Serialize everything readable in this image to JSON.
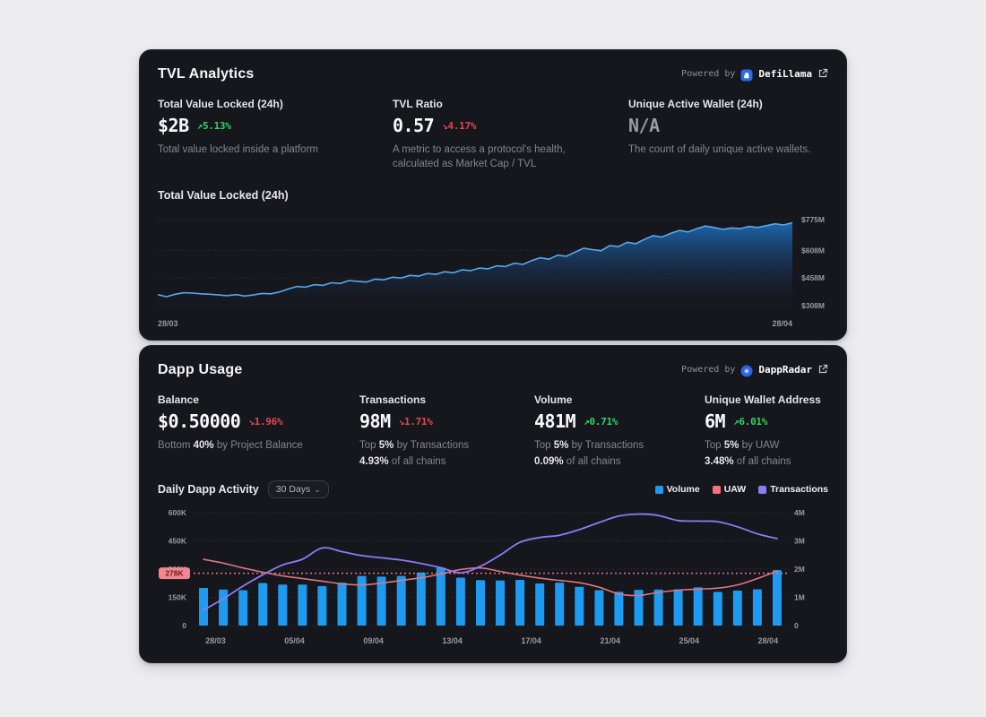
{
  "theme": {
    "card_bg": "#16161d",
    "page_bg": "#ededf0",
    "accent_blue": "#1d9bf0",
    "green": "#2fd565",
    "red": "#e5484d",
    "purple": "#8b7cf6",
    "pink": "#dd7680",
    "muted_text": "#85858e"
  },
  "tvl_card": {
    "title": "TVL Analytics",
    "powered_by": "Powered by",
    "provider": "DefiLlama",
    "metrics": [
      {
        "label": "Total Value Locked (24h)",
        "value": "$2B",
        "arrow": "↗",
        "change": "5.13%",
        "direction": "up",
        "description": "Total value locked inside a platform"
      },
      {
        "label": "TVL Ratio",
        "value": "0.57",
        "arrow": "↘",
        "change": "4.17%",
        "direction": "down",
        "description": "A metric to access a protocol's health, calculated as Market Cap / TVL"
      },
      {
        "label": "Unique Active Wallet (24h)",
        "value": "N/A",
        "description": "The count of daily unique active wallets."
      }
    ],
    "chart_title": "Total Value Locked (24h)"
  },
  "dapp_card": {
    "title": "Dapp Usage",
    "powered_by": "Powered by",
    "provider": "DappRadar",
    "metrics": [
      {
        "label": "Balance",
        "value": "$0.50000",
        "arrow": "↘",
        "change": "1.96%",
        "direction": "down",
        "desc_prefix": "Bottom ",
        "desc_highlight": "40%",
        "desc_suffix": " by Project Balance"
      },
      {
        "label": "Transactions",
        "value": "98M",
        "arrow": "↘",
        "change": "1.71%",
        "direction": "down",
        "desc_prefix": "Top ",
        "desc_highlight": "5%",
        "desc_suffix": " by Transactions",
        "line2_highlight": "4.93%",
        "line2_suffix": " of all chains"
      },
      {
        "label": "Volume",
        "value": "481M",
        "arrow": "↗",
        "change": "0.71%",
        "direction": "up",
        "desc_prefix": "Top ",
        "desc_highlight": "5%",
        "desc_suffix": " by Transactions",
        "line2_highlight": "0.09%",
        "line2_suffix": " of all chains"
      },
      {
        "label": "Unique Wallet Address",
        "value": "6M",
        "arrow": "↗",
        "change": "6.01%",
        "direction": "up",
        "desc_prefix": "Top ",
        "desc_highlight": "5%",
        "desc_suffix": " by UAW",
        "line2_highlight": "3.48%",
        "line2_suffix": " of all chains"
      }
    ],
    "chart_title": "Daily Dapp Activity",
    "range_selector": "30 Days"
  },
  "chart_data": [
    {
      "type": "area",
      "title": "Total Value Locked (24h)",
      "unit": "USD millions",
      "x_first_label": "28/03",
      "x_last_label": "28/04",
      "y_ticks": [
        {
          "label": "$775M",
          "value": 775
        },
        {
          "label": "$608M",
          "value": 608
        },
        {
          "label": "$458M",
          "value": 458
        },
        {
          "label": "$308M",
          "value": 308
        }
      ],
      "ylim": [
        308,
        775
      ],
      "line_color": "#57a9ea",
      "fill_color": "#1d74c8",
      "values": [
        368,
        356,
        370,
        378,
        376,
        372,
        370,
        366,
        362,
        368,
        360,
        366,
        374,
        372,
        382,
        398,
        412,
        408,
        422,
        418,
        432,
        428,
        444,
        440,
        436,
        452,
        448,
        462,
        458,
        472,
        468,
        482,
        478,
        492,
        486,
        502,
        498,
        512,
        508,
        524,
        520,
        538,
        532,
        552,
        568,
        560,
        582,
        576,
        598,
        620,
        612,
        606,
        634,
        628,
        652,
        644,
        668,
        688,
        680,
        700,
        716,
        708,
        726,
        740,
        732,
        722,
        730,
        726,
        738,
        732,
        742,
        752,
        746,
        758
      ]
    },
    {
      "type": "combo",
      "title": "Daily Dapp Activity",
      "x_labels": [
        "28/03",
        "05/04",
        "09/04",
        "13/04",
        "17/04",
        "21/04",
        "25/04",
        "28/04"
      ],
      "left_axis": {
        "unit": "K",
        "max": 600,
        "ticks": [
          {
            "label": "600K",
            "value": 600
          },
          {
            "label": "450K",
            "value": 450
          },
          {
            "label": "300K",
            "value": 300
          },
          {
            "label": "150K",
            "value": 150
          },
          {
            "label": "0",
            "value": 0
          }
        ]
      },
      "right_axis": {
        "unit": "M",
        "max": 4,
        "ticks": [
          {
            "label": "4M",
            "value": 4
          },
          {
            "label": "3M",
            "value": 3
          },
          {
            "label": "2M",
            "value": 2
          },
          {
            "label": "1M",
            "value": 1
          },
          {
            "label": "0",
            "value": 0
          }
        ]
      },
      "average_line": {
        "label": "278K",
        "value": 278,
        "color": "#e87780",
        "badge_bg": "#f0868e",
        "badge_text": "#6e1a20"
      },
      "series": [
        {
          "name": "Volume",
          "type": "bar",
          "axis": "left",
          "color": "#1d9bf0",
          "values": [
            200,
            192,
            188,
            226,
            218,
            218,
            210,
            228,
            264,
            260,
            264,
            282,
            308,
            255,
            242,
            240,
            243,
            224,
            228,
            206,
            188,
            180,
            190,
            192,
            193,
            203,
            179,
            186,
            193,
            295
          ]
        },
        {
          "name": "UAW",
          "type": "line",
          "axis": "left",
          "color": "#dd7680",
          "values": [
            352,
            332,
            306,
            284,
            264,
            250,
            236,
            222,
            216,
            226,
            240,
            254,
            274,
            298,
            306,
            288,
            268,
            252,
            240,
            228,
            204,
            168,
            160,
            176,
            188,
            194,
            199,
            216,
            250,
            290
          ]
        },
        {
          "name": "Transactions",
          "type": "line",
          "axis": "right",
          "color": "#8b7cf6",
          "values": [
            0.55,
            0.95,
            1.4,
            1.8,
            2.15,
            2.35,
            2.75,
            2.62,
            2.48,
            2.4,
            2.32,
            2.2,
            2.05,
            1.87,
            2.1,
            2.5,
            2.95,
            3.12,
            3.2,
            3.4,
            3.65,
            3.88,
            3.95,
            3.9,
            3.72,
            3.7,
            3.68,
            3.5,
            3.25,
            3.08
          ]
        }
      ]
    }
  ]
}
